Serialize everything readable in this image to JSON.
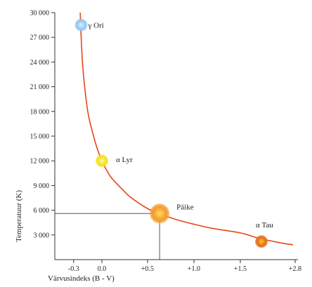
{
  "chart_data": {
    "type": "line",
    "title": "",
    "xlabel": "Värvusindeks  (B - V)",
    "ylabel": "Temperatuur (K)",
    "xlim": [
      -0.5,
      2.8
    ],
    "ylim": [
      0,
      30000
    ],
    "x_ticks": [
      -0.3,
      0.0,
      0.5,
      1.0,
      1.5,
      2.8
    ],
    "x_tick_labels": [
      "-0.3",
      "0.0",
      "+0.5",
      "+1.0",
      "+1.5",
      "+2.8"
    ],
    "y_ticks": [
      3000,
      6000,
      9000,
      12000,
      15000,
      18000,
      21000,
      24000,
      27000,
      30000
    ],
    "y_tick_labels": [
      "3 000",
      "6 000",
      "9 000",
      "12 000",
      "15 000",
      "18 000",
      "21 000",
      "24 000",
      "27 000",
      "30 000"
    ],
    "grid": false,
    "curve": {
      "color": "#e8461a",
      "x": [
        -0.23,
        -0.22,
        -0.2,
        -0.15,
        -0.1,
        -0.05,
        0.0,
        0.05,
        0.1,
        0.2,
        0.3,
        0.4,
        0.5,
        0.62,
        0.8,
        1.0,
        1.2,
        1.5,
        1.8,
        2.0,
        2.2,
        2.5,
        2.75
      ],
      "y": [
        30000,
        27000,
        23000,
        18000,
        15500,
        13500,
        12000,
        10900,
        10000,
        8800,
        7700,
        6900,
        6200,
        5600,
        4900,
        4300,
        3800,
        3250,
        2800,
        2500,
        2300,
        2000,
        1800
      ]
    },
    "stars": [
      {
        "name": "γ Ori",
        "x": -0.22,
        "y": 28500,
        "color": "#8fc6f2",
        "core": "#dff0ff",
        "size": "small"
      },
      {
        "name": "α Lyr",
        "x": 0.0,
        "y": 12000,
        "color": "#f3e01a",
        "core": "#fff6a8",
        "size": "small"
      },
      {
        "name": "Päike",
        "x": 0.63,
        "y": 5600,
        "color": "#f39a2a",
        "core": "#ffd866",
        "size": "large"
      },
      {
        "name": "α Tau",
        "x": 2.0,
        "y": 2200,
        "color": "#e8651a",
        "core": "#f3d11a",
        "size": "small"
      }
    ],
    "reference_lines": {
      "sun_x": 0.63,
      "sun_y": 5600,
      "color": "#555555"
    }
  }
}
